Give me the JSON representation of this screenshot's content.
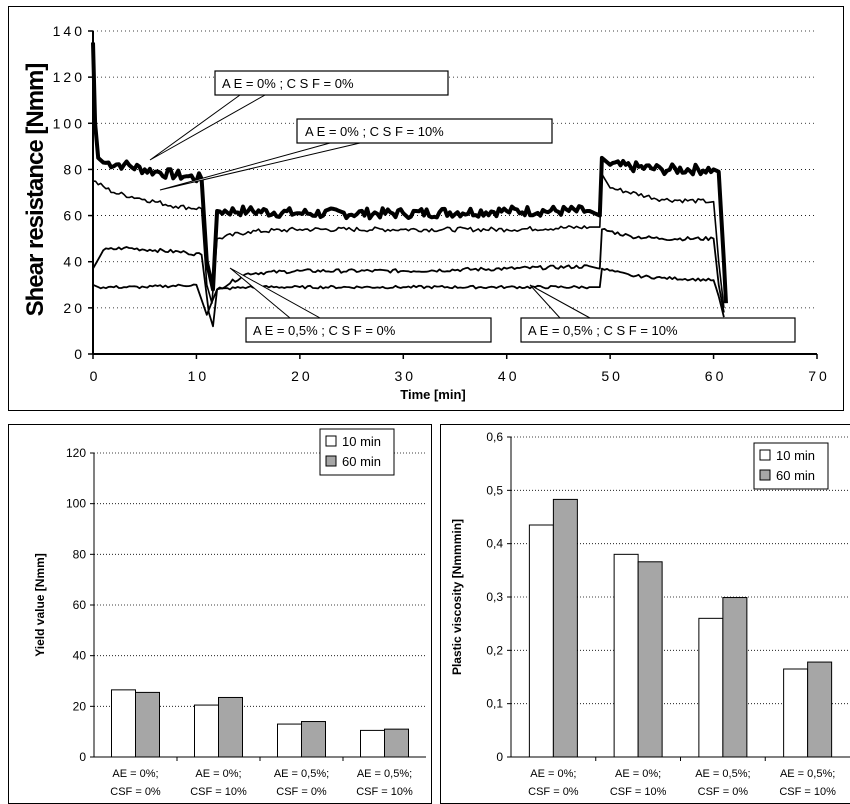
{
  "chart_data": [
    {
      "type": "line",
      "xlabel": "Time  [min]",
      "ylabel": "Shear resistance [Nmm]",
      "xlim": [
        0,
        70
      ],
      "ylim": [
        0,
        140
      ],
      "xticks": [
        "0",
        "10",
        "20",
        "30",
        "40",
        "50",
        "60",
        "70"
      ],
      "yticks": [
        "0",
        "20",
        "40",
        "60",
        "80",
        "100",
        "120",
        "140"
      ],
      "grid": "horizontal dotted",
      "series": [
        {
          "name": "A E  =  0% ;  C S F  =  0%",
          "x": [
            0,
            0.2,
            0.5,
            1,
            3,
            6,
            9,
            10.5,
            11,
            11.6,
            12,
            15,
            20,
            30,
            40,
            48,
            49,
            49.2,
            50,
            55,
            60,
            60.5,
            61,
            61.2
          ],
          "y": [
            135,
            100,
            85,
            83,
            82,
            79,
            77,
            76,
            40,
            28,
            62,
            62,
            61,
            61,
            62,
            62,
            60,
            85,
            82,
            80,
            80,
            79,
            40,
            22
          ]
        },
        {
          "name": "A E  =  0% ;  C S F  =  10%",
          "x": [
            0,
            2,
            5,
            8,
            10.5,
            11,
            11.5,
            12,
            15,
            20,
            30,
            40,
            48,
            49,
            49.2,
            50,
            55,
            60,
            60.5,
            61
          ],
          "y": [
            75,
            70,
            67,
            64,
            63,
            30,
            22,
            50,
            53,
            54,
            54,
            54,
            55,
            55,
            78,
            72,
            67,
            66,
            40,
            20
          ]
        },
        {
          "name": "A E  =  0,5% ;  C S F  =  0%",
          "x": [
            0,
            1,
            3,
            6,
            9,
            10.5,
            11.2,
            11.6,
            12,
            15,
            20,
            30,
            40,
            48,
            49,
            49.2,
            52,
            55,
            60,
            60.5,
            61
          ],
          "y": [
            37,
            45,
            46,
            45,
            44,
            43,
            18,
            12,
            28,
            35,
            36,
            36,
            37,
            38,
            37,
            54,
            51,
            50,
            50,
            30,
            18
          ]
        },
        {
          "name": "A E  =  0,5% ;  C S F  =  10%",
          "x": [
            0,
            0.5,
            5,
            10,
            11,
            12,
            15,
            20,
            30,
            40,
            48,
            49,
            49.2,
            52,
            55,
            60,
            60.5,
            61
          ],
          "y": [
            30,
            29,
            29,
            30,
            17,
            28,
            29,
            29,
            29,
            29,
            29,
            29,
            37,
            34,
            33,
            32,
            25,
            16
          ]
        }
      ]
    },
    {
      "type": "bar",
      "ylabel": "Yield value [Nmm]",
      "ylim": [
        0,
        120
      ],
      "yticks": [
        "0",
        "20",
        "40",
        "60",
        "80",
        "100",
        "120"
      ],
      "categories": [
        [
          "AE = 0%;",
          "CSF = 0%"
        ],
        [
          "AE = 0%;",
          "CSF = 10%"
        ],
        [
          "AE = 0,5%;",
          "CSF = 0%"
        ],
        [
          "AE = 0,5%;",
          "CSF = 10%"
        ]
      ],
      "series": [
        {
          "name": "10 min",
          "color": "#ffffff",
          "values": [
            26.5,
            20.5,
            13,
            10.5
          ]
        },
        {
          "name": "60 min",
          "color": "#a6a6a6",
          "values": [
            25.5,
            23.5,
            14,
            11
          ]
        }
      ],
      "legend": "top-right",
      "grid": "horizontal dotted"
    },
    {
      "type": "bar",
      "ylabel": "Plastic viscosity [Nmmmin]",
      "ylim": [
        0,
        0.6
      ],
      "yticks": [
        "0",
        "0,1",
        "0,2",
        "0,3",
        "0,4",
        "0,5",
        "0,6"
      ],
      "categories": [
        [
          "AE = 0%;",
          "CSF = 0%"
        ],
        [
          "AE = 0%;",
          "CSF = 10%"
        ],
        [
          "AE = 0,5%;",
          "CSF = 0%"
        ],
        [
          "AE = 0,5%;",
          "CSF = 10%"
        ]
      ],
      "series": [
        {
          "name": "10 min",
          "color": "#ffffff",
          "values": [
            0.435,
            0.38,
            0.26,
            0.165
          ]
        },
        {
          "name": "60 min",
          "color": "#a6a6a6",
          "values": [
            0.483,
            0.366,
            0.299,
            0.178
          ]
        }
      ],
      "legend": "top-right",
      "grid": "horizontal dotted"
    }
  ]
}
